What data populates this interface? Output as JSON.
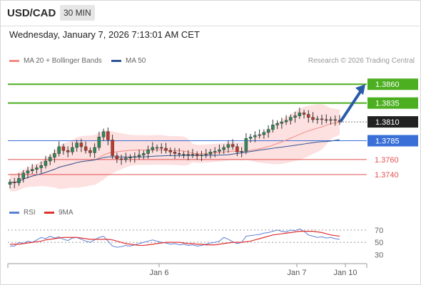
{
  "header": {
    "symbol": "USD/CAD",
    "timeframe": "30 MIN"
  },
  "datetime": "Wednesday, January 7, 2026 7:13:01 AM CET",
  "credit": "Research © 2026 Trading Central",
  "legend": {
    "ma20": {
      "label": "MA 20 + Bollinger Bands",
      "color": "#f28b82"
    },
    "ma50": {
      "label": "MA 50",
      "color": "#2e5596"
    }
  },
  "rsi_legend": {
    "rsi": {
      "label": "RSI",
      "color": "#5b7fd6"
    },
    "ma9": {
      "label": "9MA",
      "color": "#e03030"
    }
  },
  "colors": {
    "up_candle": "#2e8b57",
    "down_candle": "#c0392b",
    "band_fill": "#fde0e0",
    "resistance": "#4caf20",
    "support": "#e35050",
    "pivot": "#3a6fd8",
    "arrow": "#2a5ba8",
    "current_price_bg": "#222222"
  },
  "chart_data": [
    {
      "type": "candlestick",
      "title": "",
      "xlabel": "",
      "ylabel": "",
      "ylim": [
        1.3705,
        1.3882
      ],
      "x_ticks": [
        "Jan 6",
        "Jan 7",
        "Jan 10"
      ],
      "close": [
        1.373,
        1.3729,
        1.3735,
        1.3742,
        1.3745,
        1.3747,
        1.3749,
        1.3752,
        1.3758,
        1.3763,
        1.3768,
        1.3777,
        1.3772,
        1.377,
        1.3776,
        1.3782,
        1.3777,
        1.3772,
        1.3769,
        1.3776,
        1.379,
        1.3797,
        1.3786,
        1.3765,
        1.3761,
        1.376,
        1.3762,
        1.3763,
        1.3764,
        1.3766,
        1.3768,
        1.3773,
        1.3776,
        1.3776,
        1.3775,
        1.3772,
        1.377,
        1.3768,
        1.3767,
        1.3767,
        1.3766,
        1.3767,
        1.3765,
        1.3766,
        1.3767,
        1.377,
        1.3771,
        1.3773,
        1.3776,
        1.378,
        1.3777,
        1.377,
        1.3771,
        1.3788,
        1.379,
        1.3792,
        1.3793,
        1.3796,
        1.38,
        1.3806,
        1.3808,
        1.381,
        1.3812,
        1.3816,
        1.3818,
        1.3822,
        1.382,
        1.3816,
        1.3813,
        1.3814,
        1.3813,
        1.3812,
        1.3813,
        1.3812,
        1.381
      ],
      "levels": [
        {
          "label": "1.3860",
          "value": 1.386,
          "kind": "resistance"
        },
        {
          "label": "1.3835",
          "value": 1.3835,
          "kind": "resistance"
        },
        {
          "label": "1.3810",
          "value": 1.381,
          "kind": "current"
        },
        {
          "label": "1.3785",
          "value": 1.3785,
          "kind": "pivot"
        },
        {
          "label": "1.3760",
          "value": 1.376,
          "kind": "support"
        },
        {
          "label": "1.3740",
          "value": 1.374,
          "kind": "support"
        }
      ],
      "projection": {
        "from": 1.381,
        "to": 1.386,
        "direction": "up"
      }
    },
    {
      "type": "line",
      "title": "",
      "series": [
        {
          "name": "RSI",
          "values": [
            44,
            44,
            50,
            48,
            52,
            50,
            54,
            58,
            56,
            60,
            57,
            59,
            55,
            53,
            57,
            58,
            55,
            52,
            50,
            54,
            58,
            60,
            52,
            44,
            42,
            43,
            45,
            44,
            46,
            48,
            50,
            52,
            54,
            52,
            50,
            49,
            47,
            48,
            46,
            47,
            45,
            46,
            44,
            45,
            47,
            49,
            50,
            52,
            58,
            55,
            51,
            48,
            50,
            60,
            61,
            62,
            63,
            65,
            66,
            68,
            70,
            68,
            67,
            70,
            69,
            72,
            68,
            62,
            60,
            58,
            59,
            57,
            58,
            56,
            55
          ]
        },
        {
          "name": "9MA",
          "values": [
            47,
            47,
            47,
            48,
            49,
            50,
            51,
            52,
            54,
            55,
            56,
            57,
            58,
            58,
            58,
            58,
            57,
            56,
            55,
            55,
            55,
            55,
            55,
            54,
            52,
            50,
            48,
            47,
            46,
            45,
            45,
            46,
            47,
            48,
            49,
            50,
            50,
            50,
            50,
            49,
            48,
            48,
            47,
            47,
            46,
            46,
            46,
            47,
            48,
            49,
            50,
            50,
            50,
            51,
            52,
            54,
            56,
            58,
            60,
            62,
            63,
            64,
            65,
            66,
            67,
            68,
            68,
            68,
            68,
            67,
            66,
            64,
            62,
            61,
            60
          ]
        }
      ],
      "ylim": [
        20,
        85
      ],
      "y_ticks": [
        "70",
        "50",
        "30"
      ]
    }
  ]
}
